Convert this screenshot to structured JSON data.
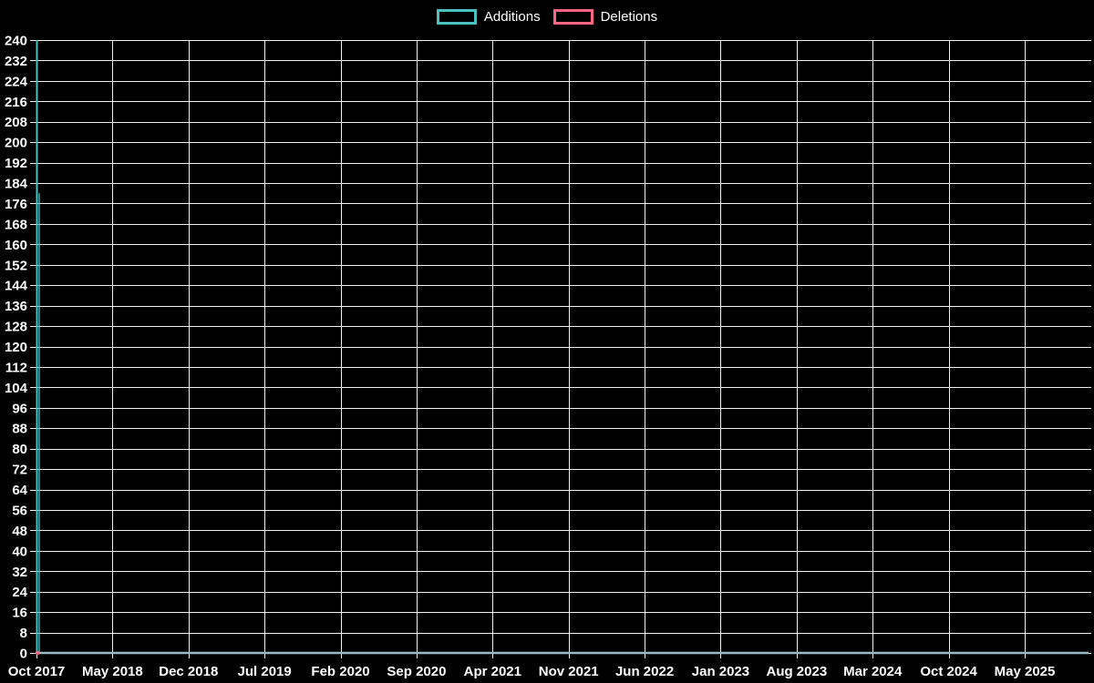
{
  "page": {
    "background_color": "#000000",
    "text_color": "#ffffff"
  },
  "legend": {
    "position": "top-center",
    "items": [
      {
        "label": "Additions",
        "color": "#4bc0c0"
      },
      {
        "label": "Deletions",
        "color": "#ff6384"
      }
    ]
  },
  "chart_data": {
    "type": "line",
    "title": "",
    "xlabel": "",
    "ylabel": "",
    "grid": true,
    "legend_position": "top",
    "colors": {
      "background": "#000000",
      "gridline": "#ffffff",
      "tick_text": "#ffffff",
      "zero_baseline": "#9cb9c4",
      "additions": "#4bc0c0",
      "deletions": "#ff6384"
    },
    "y_axis": {
      "min": 0,
      "max": 240,
      "step": 8
    },
    "x_axis": {
      "tick_labels": [
        "Oct 2017",
        "May 2018",
        "Dec 2018",
        "Jul 2019",
        "Feb 2020",
        "Sep 2020",
        "Apr 2021",
        "Nov 2021",
        "Jun 2022",
        "Jan 2023",
        "Aug 2023",
        "Mar 2024",
        "Oct 2024",
        "May 2025"
      ],
      "unit": "weeks, labeled every 7 months"
    },
    "series": [
      {
        "name": "Additions",
        "color": "#4bc0c0",
        "points": [
          {
            "x": "Oct 2017 (first week)",
            "y": 240
          },
          {
            "x": "Oct 2017 (second week)",
            "y": 180
          },
          {
            "x": "all subsequent weeks through May 2025",
            "y": 0
          }
        ]
      },
      {
        "name": "Deletions",
        "color": "#ff6384",
        "points": [
          {
            "x": "all weeks Oct 2017 through May 2025",
            "y": 0
          }
        ]
      }
    ]
  }
}
